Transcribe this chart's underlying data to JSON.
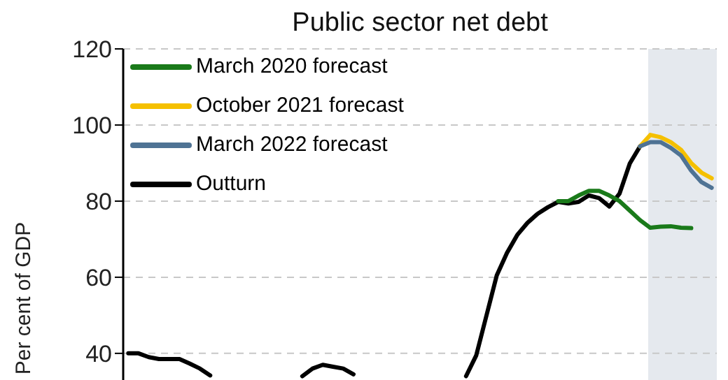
{
  "chart_data": {
    "type": "line",
    "title": "Public sector net debt",
    "ylabel": "Per cent of GDP",
    "categories": [
      null,
      null,
      null,
      null,
      null,
      null,
      null,
      null,
      null,
      null,
      null,
      null,
      null,
      null,
      null,
      null,
      null,
      null,
      null,
      null,
      null,
      null,
      null,
      null,
      null,
      null,
      null,
      null,
      null,
      null,
      null,
      null,
      null,
      null,
      null,
      null,
      null,
      null,
      null,
      null,
      null,
      null,
      null,
      null,
      null,
      null,
      null,
      null,
      null,
      null,
      null,
      null,
      null,
      null,
      null,
      null,
      null,
      null
    ],
    "ylim": [
      33,
      120
    ],
    "yticks": [
      40,
      60,
      80,
      100,
      120
    ],
    "tick_labels": "y",
    "grid": "y",
    "legend": "top left",
    "line_style": "solid",
    "marker": "none",
    "series": [
      {
        "name": "March 2020 forecast",
        "color": "#1a7a1a",
        "values": [
          null,
          null,
          null,
          null,
          null,
          null,
          null,
          null,
          null,
          null,
          null,
          null,
          null,
          null,
          null,
          null,
          null,
          null,
          null,
          null,
          null,
          null,
          null,
          null,
          null,
          null,
          null,
          null,
          null,
          null,
          null,
          null,
          null,
          null,
          null,
          null,
          null,
          null,
          null,
          null,
          null,
          null,
          80,
          80,
          81.5,
          82.7,
          82.7,
          81.5,
          80,
          77.5,
          75,
          73,
          73.3,
          73.4,
          73,
          72.9,
          null,
          null
        ]
      },
      {
        "name": "October 2021 forecast",
        "color": "#f5c000",
        "values": [
          null,
          null,
          null,
          null,
          null,
          null,
          null,
          null,
          null,
          null,
          null,
          null,
          null,
          null,
          null,
          null,
          null,
          null,
          null,
          null,
          null,
          null,
          null,
          null,
          null,
          null,
          null,
          null,
          null,
          null,
          null,
          null,
          null,
          null,
          null,
          null,
          null,
          null,
          null,
          null,
          null,
          null,
          null,
          null,
          null,
          null,
          null,
          null,
          null,
          null,
          94.4,
          97.4,
          96.8,
          95.5,
          93.5,
          90,
          87.5,
          86
        ]
      },
      {
        "name": "March 2022 forecast",
        "color": "#4f7394",
        "values": [
          null,
          null,
          null,
          null,
          null,
          null,
          null,
          null,
          null,
          null,
          null,
          null,
          null,
          null,
          null,
          null,
          null,
          null,
          null,
          null,
          null,
          null,
          null,
          null,
          null,
          null,
          null,
          null,
          null,
          null,
          null,
          null,
          null,
          null,
          null,
          null,
          null,
          null,
          null,
          null,
          null,
          null,
          null,
          null,
          null,
          null,
          null,
          null,
          null,
          null,
          94.4,
          95.5,
          95.5,
          94,
          92,
          88,
          85,
          83.5
        ]
      },
      {
        "name": "Outturn",
        "color": "#000000",
        "values": [
          40,
          40,
          39,
          38.5,
          38.5,
          38.5,
          37.3,
          36,
          34.2,
          null,
          null,
          null,
          null,
          null,
          null,
          null,
          null,
          34,
          36,
          37,
          36.5,
          36,
          34.5,
          null,
          null,
          null,
          null,
          null,
          null,
          null,
          null,
          null,
          null,
          34,
          39.5,
          50,
          60.5,
          66.4,
          71.1,
          74.3,
          76.7,
          78.4,
          79.8,
          79.4,
          79.8,
          81.5,
          80.8,
          78.6,
          82,
          89.9,
          94.4,
          null,
          null,
          null,
          null,
          null,
          null,
          null
        ]
      }
    ]
  }
}
